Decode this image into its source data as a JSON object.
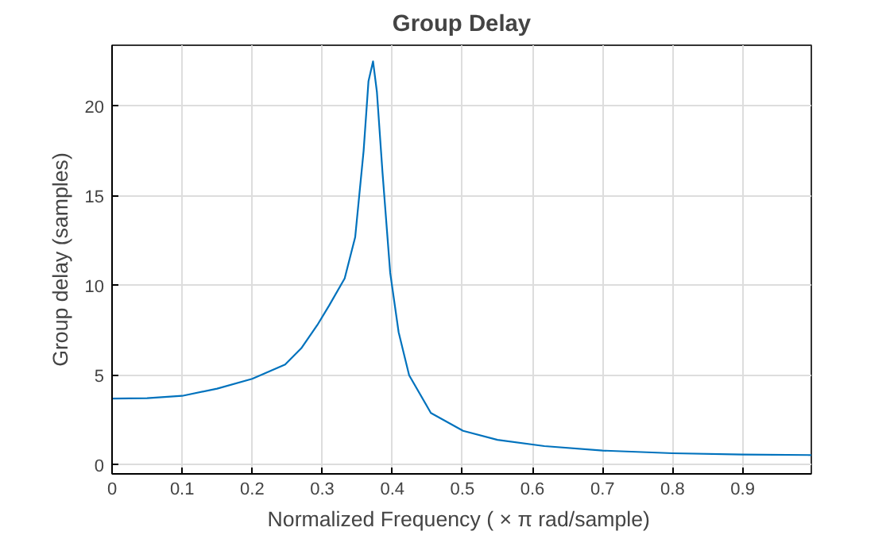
{
  "chart_data": {
    "type": "line",
    "title": "Group Delay",
    "xlabel": "Normalized Frequency  ( × π rad/sample)",
    "ylabel": "Group delay (samples)",
    "xlim": [
      0,
      0.998
    ],
    "ylim": [
      -0.5,
      23.4
    ],
    "xticks": [
      0,
      0.1,
      0.2,
      0.3,
      0.4,
      0.5,
      0.6,
      0.7,
      0.8,
      0.9
    ],
    "yticks": [
      0,
      5,
      10,
      15,
      20
    ],
    "grid": true,
    "series": [
      {
        "color": "#0072bd",
        "x": [
          0,
          0.05,
          0.1,
          0.15,
          0.2,
          0.247,
          0.27,
          0.293,
          0.31,
          0.332,
          0.347,
          0.359,
          0.366,
          0.3725,
          0.378,
          0.386,
          0.397,
          0.409,
          0.424,
          0.455,
          0.501,
          0.55,
          0.617,
          0.7,
          0.8,
          0.9,
          0.998
        ],
        "values": [
          3.7,
          3.72,
          3.85,
          4.25,
          4.8,
          5.6,
          6.5,
          7.8,
          8.9,
          10.4,
          12.7,
          17.5,
          21.4,
          22.5,
          20.8,
          16.3,
          10.7,
          7.4,
          5.0,
          2.9,
          1.9,
          1.4,
          1.05,
          0.8,
          0.65,
          0.58,
          0.55
        ]
      }
    ]
  }
}
